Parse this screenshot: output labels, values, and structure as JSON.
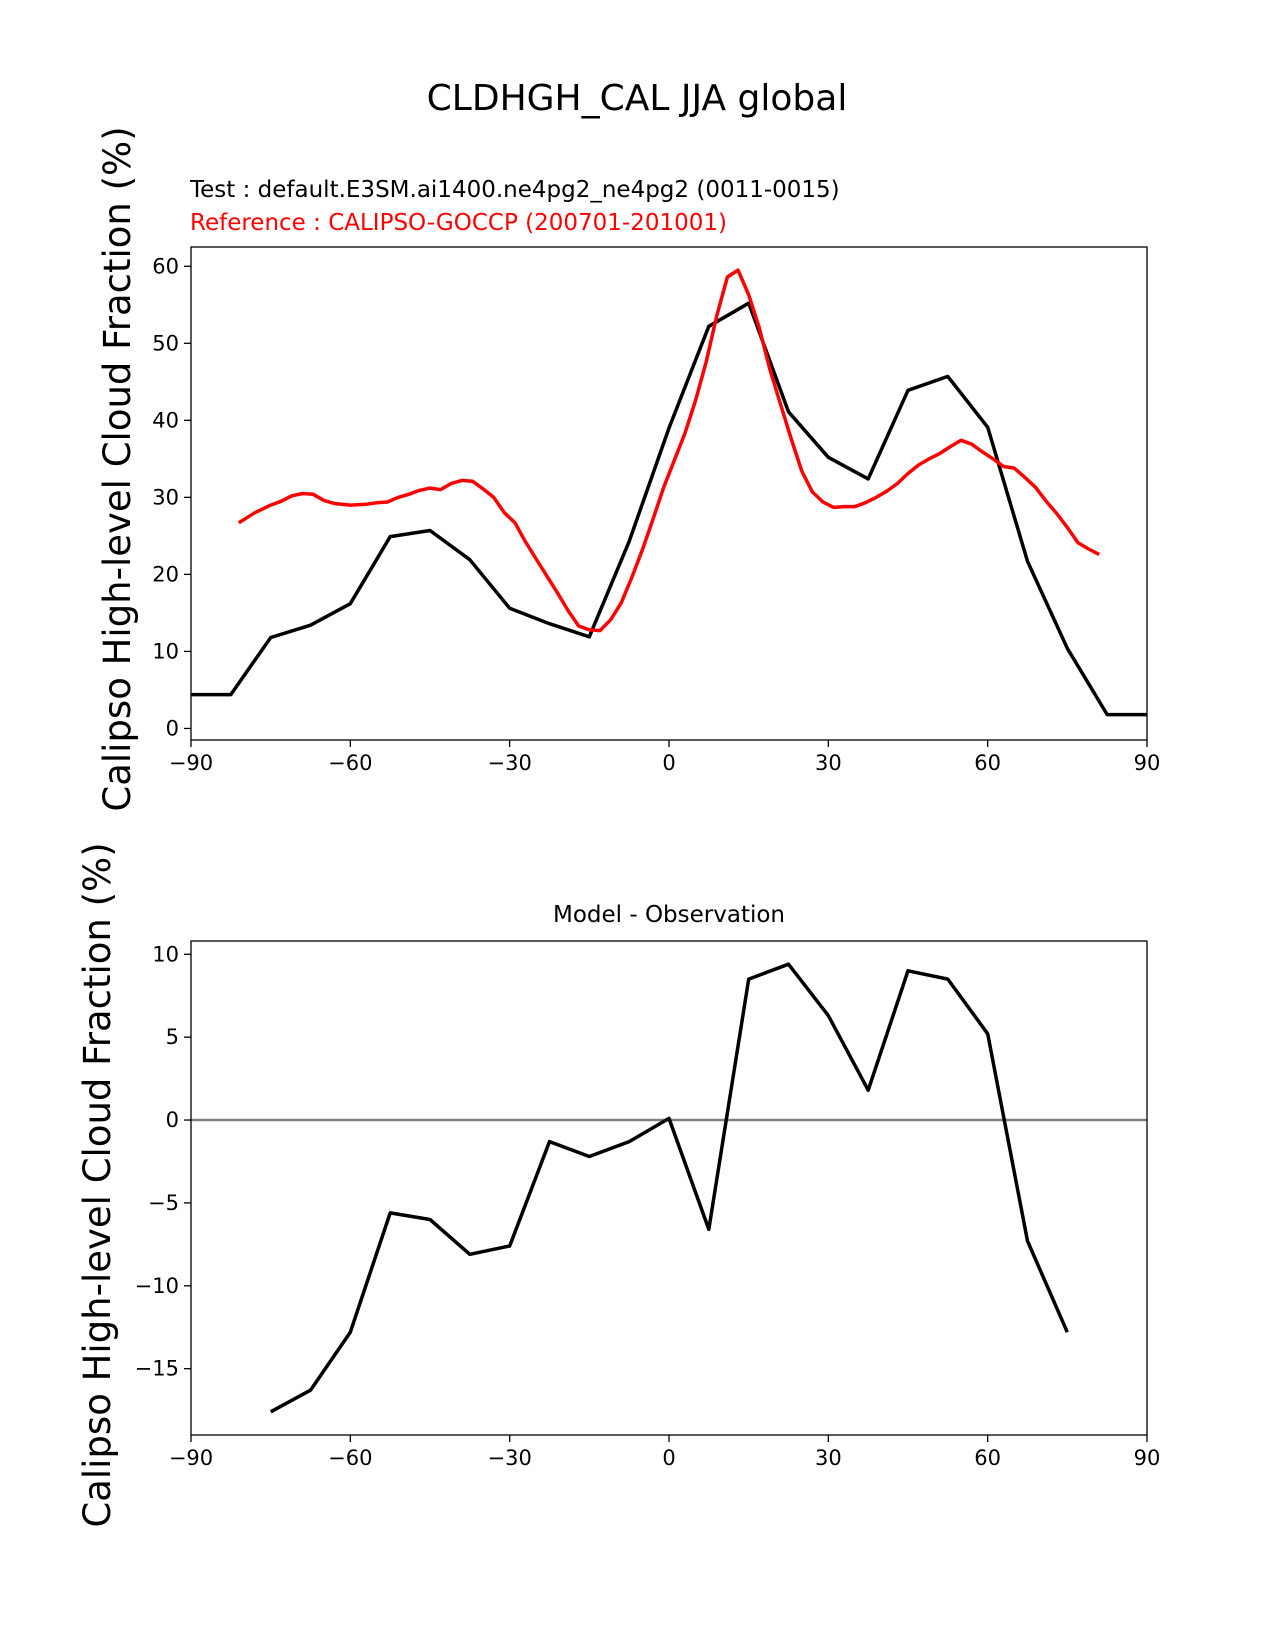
{
  "figure_title": "CLDHGH_CAL JJA global",
  "chart_data": [
    {
      "type": "line",
      "title": "",
      "test_label": "Test : default.E3SM.ai1400.ne4pg2_ne4pg2 (0011-0015)",
      "reference_label": "Reference : CALIPSO-GOCCP (200701-201001)",
      "xlabel": "",
      "ylabel": "Calipso High-level Cloud Fraction (%)",
      "xlim": [
        -90,
        90
      ],
      "ylim": [
        -1.5,
        62.5
      ],
      "xticks": [
        -90,
        -60,
        -30,
        0,
        30,
        60,
        90
      ],
      "xtick_labels": [
        "−90",
        "−60",
        "−30",
        "0",
        "30",
        "60",
        "90"
      ],
      "yticks": [
        0,
        10,
        20,
        30,
        40,
        50,
        60
      ],
      "ytick_labels": [
        "0",
        "10",
        "20",
        "30",
        "40",
        "50",
        "60"
      ],
      "series": [
        {
          "name": "Test",
          "color": "#000000",
          "x": [
            -90,
            -82.5,
            -75,
            -67.5,
            -60,
            -52.5,
            -45,
            -37.5,
            -30,
            -22.5,
            -15,
            -7.5,
            0,
            7.5,
            15,
            22.5,
            30,
            37.5,
            45,
            52.5,
            60,
            67.5,
            75,
            82.5,
            90
          ],
          "y": [
            4.4,
            4.4,
            11.8,
            13.4,
            16.2,
            24.9,
            25.7,
            21.9,
            15.6,
            13.6,
            11.9,
            24.3,
            39.0,
            52.2,
            55.2,
            41.1,
            35.2,
            32.4,
            43.9,
            45.7,
            39.1,
            21.7,
            10.4,
            1.8,
            1.8
          ]
        },
        {
          "name": "Reference",
          "color": "#ff0000",
          "x": [
            -81,
            -78,
            -75,
            -73,
            -71,
            -69,
            -67,
            -65,
            -63,
            -60,
            -57,
            -55,
            -53,
            -51,
            -49,
            -47,
            -45,
            -43,
            -41,
            -39,
            -37,
            -35,
            -33,
            -31,
            -29,
            -27,
            -25,
            -23,
            -21,
            -19,
            -17,
            -15,
            -13,
            -11,
            -9,
            -7,
            -5,
            -3,
            -1,
            1,
            3,
            5,
            7,
            9,
            11,
            13,
            15,
            17,
            19,
            21,
            23,
            25,
            27,
            29,
            31,
            33,
            35,
            37,
            39,
            41,
            43,
            45,
            47,
            49,
            51,
            53,
            55,
            57,
            59,
            61,
            63,
            65,
            67,
            69,
            71,
            73,
            75,
            77,
            79,
            81
          ],
          "y": [
            26.7,
            28.0,
            29.0,
            29.5,
            30.2,
            30.5,
            30.4,
            29.6,
            29.2,
            29.0,
            29.1,
            29.3,
            29.4,
            30.0,
            30.4,
            30.9,
            31.2,
            31.0,
            31.8,
            32.2,
            32.1,
            31.1,
            30.0,
            28.0,
            26.7,
            24.2,
            22.0,
            19.8,
            17.6,
            15.3,
            13.3,
            12.8,
            12.7,
            14.1,
            16.3,
            19.6,
            23.2,
            27.2,
            31.3,
            34.8,
            38.3,
            42.6,
            47.6,
            53.6,
            58.6,
            59.5,
            56.3,
            52.0,
            46.6,
            42.1,
            37.6,
            33.4,
            30.7,
            29.4,
            28.7,
            28.8,
            28.8,
            29.3,
            30.0,
            30.8,
            31.8,
            33.1,
            34.2,
            35.0,
            35.7,
            36.6,
            37.4,
            36.9,
            35.9,
            35.0,
            34.0,
            33.8,
            32.6,
            31.3,
            29.5,
            27.9,
            26.1,
            24.1,
            23.3,
            22.6
          ]
        }
      ]
    },
    {
      "type": "line",
      "title": "Model - Observation",
      "xlabel": "",
      "ylabel": "Calipso High-level Cloud Fraction (%)",
      "xlim": [
        -90,
        90
      ],
      "ylim": [
        -19,
        10.8
      ],
      "xticks": [
        -90,
        -60,
        -30,
        0,
        30,
        60,
        90
      ],
      "xtick_labels": [
        "−90",
        "−60",
        "−30",
        "0",
        "30",
        "60",
        "90"
      ],
      "yticks": [
        -15,
        -10,
        -5,
        0,
        5,
        10
      ],
      "ytick_labels": [
        "−15",
        "−10",
        "−5",
        "0",
        "5",
        "10"
      ],
      "reference_line": {
        "y": 0,
        "color": "#808080"
      },
      "series": [
        {
          "name": "Model - Observation",
          "color": "#000000",
          "x": [
            -75,
            -67.5,
            -60,
            -52.5,
            -45,
            -37.5,
            -30,
            -22.5,
            -15,
            -7.5,
            0,
            7.5,
            15,
            22.5,
            30,
            37.5,
            45,
            52.5,
            60,
            67.5,
            75
          ],
          "y": [
            -17.6,
            -16.3,
            -12.8,
            -5.6,
            -6.0,
            -8.1,
            -7.6,
            -1.3,
            -2.2,
            -1.3,
            0.1,
            -6.6,
            8.5,
            9.4,
            6.3,
            1.8,
            9.0,
            8.5,
            5.2,
            -7.3,
            -12.8
          ]
        }
      ]
    }
  ]
}
